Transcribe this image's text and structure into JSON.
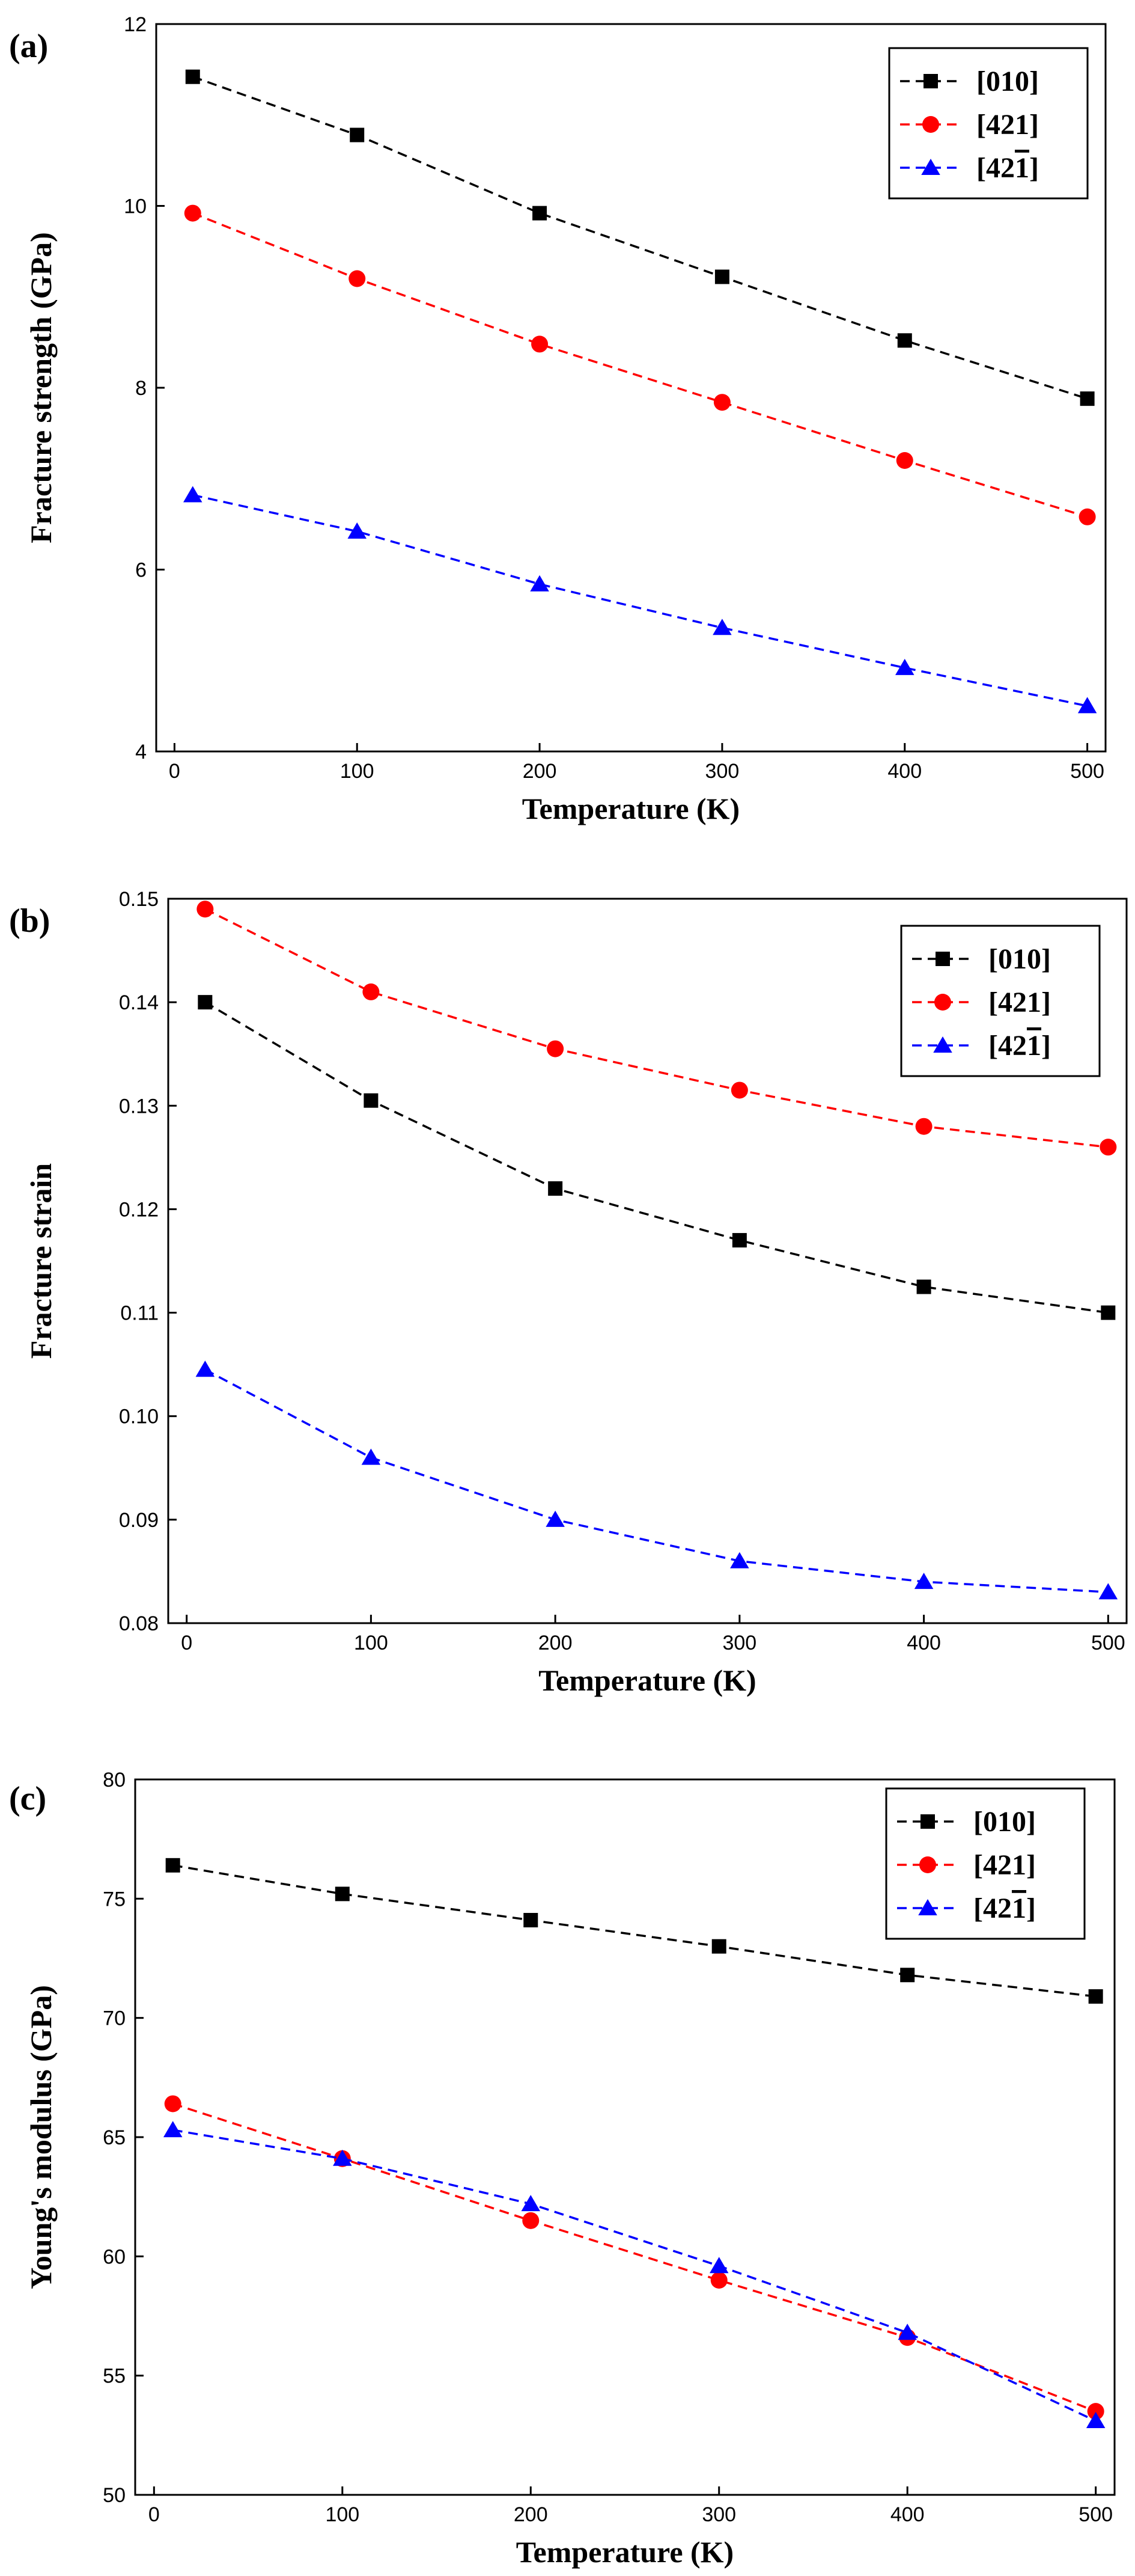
{
  "chart_data": [
    {
      "type": "line",
      "panel_label": "(a)",
      "title": "",
      "xlabel": "Temperature (K)",
      "ylabel": "Fracture strength (GPa)",
      "xlim": [
        -10,
        510
      ],
      "ylim": [
        4,
        12
      ],
      "xticks": [
        0,
        100,
        200,
        300,
        400,
        500
      ],
      "yticks": [
        4,
        6,
        8,
        10,
        12
      ],
      "xtick_labels": [
        "0",
        "100",
        "200",
        "300",
        "400",
        "500"
      ],
      "ytick_labels": [
        "4",
        "6",
        "8",
        "10",
        "12"
      ],
      "x": [
        10,
        100,
        200,
        300,
        400,
        500
      ],
      "legend_position": "top-right",
      "series": [
        {
          "name": "[010]",
          "label": "[010]",
          "values": [
            11.42,
            10.78,
            9.92,
            9.22,
            8.52,
            7.88
          ],
          "color": "#000000",
          "marker": "square"
        },
        {
          "name": "[421]",
          "label": "[421]",
          "values": [
            9.92,
            9.2,
            8.48,
            7.84,
            7.2,
            6.58
          ],
          "color": "#ff0000",
          "marker": "circle"
        },
        {
          "name": "[42-1]",
          "label": "[421]",
          "overbar": "1",
          "values": [
            6.82,
            6.42,
            5.84,
            5.36,
            4.92,
            4.5
          ],
          "color": "#0000ff",
          "marker": "triangle"
        }
      ]
    },
    {
      "type": "line",
      "panel_label": "(b)",
      "title": "",
      "xlabel": "Temperature (K)",
      "ylabel": "Fracture strain",
      "xlim": [
        -10,
        510
      ],
      "ylim": [
        0.08,
        0.15
      ],
      "xticks": [
        0,
        100,
        200,
        300,
        400,
        500
      ],
      "yticks": [
        0.08,
        0.09,
        0.1,
        0.11,
        0.12,
        0.13,
        0.14,
        0.15
      ],
      "xtick_labels": [
        "0",
        "100",
        "200",
        "300",
        "400",
        "500"
      ],
      "ytick_labels": [
        "0.08",
        "0.09",
        "0.10",
        "0.11",
        "0.12",
        "0.13",
        "0.14",
        "0.15"
      ],
      "x": [
        10,
        100,
        200,
        300,
        400,
        500
      ],
      "legend_position": "top-right",
      "series": [
        {
          "name": "[010]",
          "label": "[010]",
          "values": [
            0.14,
            0.1305,
            0.122,
            0.117,
            0.1125,
            0.11
          ],
          "color": "#000000",
          "marker": "square"
        },
        {
          "name": "[421]",
          "label": "[421]",
          "values": [
            0.149,
            0.141,
            0.1355,
            0.1315,
            0.128,
            0.126
          ],
          "color": "#ff0000",
          "marker": "circle"
        },
        {
          "name": "[42-1]",
          "label": "[421]",
          "overbar": "1",
          "values": [
            0.1045,
            0.096,
            0.09,
            0.086,
            0.084,
            0.083
          ],
          "color": "#0000ff",
          "marker": "triangle"
        }
      ]
    },
    {
      "type": "line",
      "panel_label": "(c)",
      "title": "",
      "xlabel": "Temperature (K)",
      "ylabel": "Young's modulus (GPa)",
      "xlim": [
        -10,
        510
      ],
      "ylim": [
        50,
        80
      ],
      "xticks": [
        0,
        100,
        200,
        300,
        400,
        500
      ],
      "yticks": [
        50,
        55,
        60,
        65,
        70,
        75,
        80
      ],
      "xtick_labels": [
        "0",
        "100",
        "200",
        "300",
        "400",
        "500"
      ],
      "ytick_labels": [
        "50",
        "55",
        "60",
        "65",
        "70",
        "75",
        "80"
      ],
      "x": [
        10,
        100,
        200,
        300,
        400,
        500
      ],
      "legend_position": "top-right",
      "series": [
        {
          "name": "[010]",
          "label": "[010]",
          "values": [
            76.4,
            75.2,
            74.1,
            73.0,
            71.8,
            70.9
          ],
          "color": "#000000",
          "marker": "square"
        },
        {
          "name": "[421]",
          "label": "[421]",
          "values": [
            66.4,
            64.1,
            61.5,
            59.0,
            56.6,
            53.5
          ],
          "color": "#ff0000",
          "marker": "circle"
        },
        {
          "name": "[42-1]",
          "label": "[421]",
          "overbar": "1",
          "values": [
            65.3,
            64.1,
            62.2,
            59.6,
            56.8,
            53.1
          ],
          "color": "#0000ff",
          "marker": "triangle"
        }
      ]
    }
  ]
}
